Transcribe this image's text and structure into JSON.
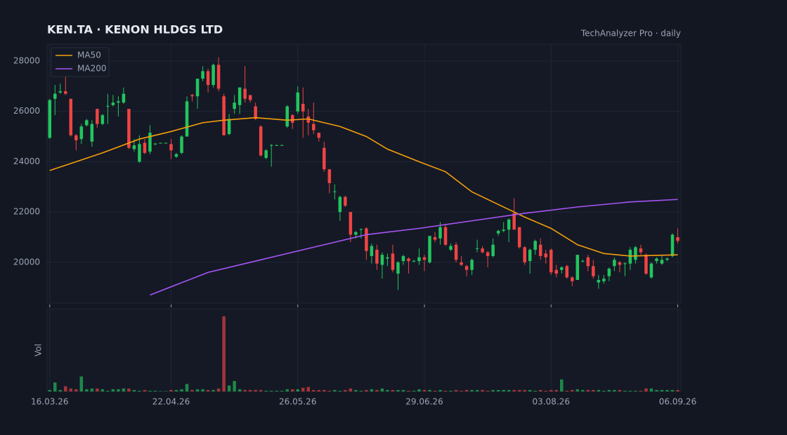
{
  "chart_data": {
    "type": "candlestick",
    "title": "KEN.TA  ·  KENON HLDGS LTD",
    "subtitle": "TechAnalyzer Pro · daily",
    "volume_label": "Vol",
    "up_color": "#22c55e",
    "down_color": "#ef4444",
    "xlim": [
      -0.5,
      119.6
    ],
    "xticks": [
      {
        "value": 0,
        "label": "16.03.26"
      },
      {
        "value": 23,
        "label": "22.04.26"
      },
      {
        "value": 47,
        "label": "26.05.26"
      },
      {
        "value": 71,
        "label": "29.06.26"
      },
      {
        "value": 95,
        "label": "03.08.26"
      },
      {
        "value": 119,
        "label": "06.09.26"
      }
    ],
    "ylim": [
      18380,
      28670
    ],
    "yticks": [
      20000,
      22000,
      24000,
      26000,
      28000
    ],
    "grid": true,
    "legend": "top-left",
    "vlim": [
      0,
      110
    ],
    "ohlc": [
      [
        24950,
        26500,
        24900,
        26450
      ],
      [
        26500,
        27050,
        25850,
        26700
      ],
      [
        26750,
        27100,
        26700,
        26800
      ],
      [
        26800,
        27400,
        26650,
        26700
      ],
      [
        26500,
        26500,
        25000,
        25050
      ],
      [
        25050,
        25100,
        24450,
        24850
      ],
      [
        24900,
        25500,
        24700,
        25400
      ],
      [
        25450,
        25700,
        25400,
        25650
      ],
      [
        24800,
        25650,
        24600,
        25500
      ],
      [
        26100,
        26100,
        25350,
        25500
      ],
      [
        25500,
        25900,
        25450,
        25850
      ],
      [
        26200,
        26700,
        25500,
        26220
      ],
      [
        26250,
        26650,
        26200,
        26350
      ],
      [
        26350,
        26600,
        25800,
        26400
      ],
      [
        26350,
        26950,
        26300,
        26700
      ],
      [
        26100,
        26100,
        24500,
        24550
      ],
      [
        24500,
        24900,
        24400,
        24650
      ],
      [
        24000,
        25050,
        23950,
        24700
      ],
      [
        24750,
        24900,
        24300,
        24350
      ],
      [
        24400,
        25450,
        24300,
        25150
      ],
      [
        24700,
        24750,
        24650,
        24720
      ],
      [
        24750,
        24760,
        24740,
        24750
      ],
      [
        24750,
        24760,
        24740,
        24750
      ],
      [
        24700,
        24900,
        24100,
        24450
      ],
      [
        24200,
        24350,
        24150,
        24300
      ],
      [
        24350,
        25050,
        24300,
        25000
      ],
      [
        25000,
        26600,
        25000,
        26400
      ],
      [
        26650,
        26700,
        26400,
        26600
      ],
      [
        26600,
        27300,
        26100,
        27300
      ],
      [
        27300,
        27800,
        27200,
        27600
      ],
      [
        27600,
        27700,
        26750,
        27050
      ],
      [
        27050,
        27900,
        26950,
        27850
      ],
      [
        27850,
        28150,
        26800,
        26900
      ],
      [
        26600,
        26700,
        25050,
        25050
      ],
      [
        25100,
        25900,
        25050,
        25700
      ],
      [
        26100,
        26650,
        25900,
        26350
      ],
      [
        26250,
        26950,
        25900,
        26950
      ],
      [
        26900,
        27800,
        26350,
        26500
      ],
      [
        26650,
        26650,
        26350,
        26450
      ],
      [
        26200,
        26350,
        25650,
        25700
      ],
      [
        25400,
        25450,
        24200,
        24250
      ],
      [
        24150,
        24500,
        24100,
        24450
      ],
      [
        24650,
        24700,
        23800,
        24660
      ],
      [
        24650,
        24680,
        24640,
        24660
      ],
      [
        24650,
        24680,
        24640,
        24660
      ],
      [
        25400,
        26250,
        25350,
        26200
      ],
      [
        25850,
        25900,
        25300,
        25550
      ],
      [
        26000,
        27000,
        25900,
        26750
      ],
      [
        26300,
        26950,
        24950,
        26000
      ],
      [
        25800,
        26100,
        25050,
        25550
      ],
      [
        25500,
        26350,
        25100,
        25250
      ],
      [
        25150,
        25150,
        24800,
        24950
      ],
      [
        24550,
        24800,
        23600,
        23700
      ],
      [
        23700,
        23700,
        22750,
        23150
      ],
      [
        22800,
        23100,
        22500,
        22820
      ],
      [
        22000,
        22650,
        21650,
        22600
      ],
      [
        22600,
        22650,
        22200,
        22250
      ],
      [
        22000,
        22000,
        20800,
        21100
      ],
      [
        21100,
        21250,
        20950,
        21200
      ],
      [
        21300,
        21350,
        20950,
        21320
      ],
      [
        21350,
        21400,
        20100,
        20450
      ],
      [
        20250,
        20750,
        19950,
        20650
      ],
      [
        20500,
        20700,
        19700,
        19950
      ],
      [
        19900,
        20400,
        19350,
        20300
      ],
      [
        20150,
        20350,
        19850,
        20200
      ],
      [
        20350,
        20700,
        19600,
        19700
      ],
      [
        19550,
        20050,
        18900,
        20000
      ],
      [
        20050,
        20300,
        19900,
        20250
      ],
      [
        20150,
        20200,
        19550,
        20050
      ],
      [
        20050,
        20100,
        20000,
        20060
      ],
      [
        20050,
        20550,
        19900,
        20200
      ],
      [
        20200,
        20300,
        19650,
        20100
      ],
      [
        20000,
        21050,
        19950,
        21050
      ],
      [
        21000,
        21200,
        20800,
        20900
      ],
      [
        20950,
        21600,
        20700,
        21400
      ],
      [
        21400,
        21500,
        20650,
        20700
      ],
      [
        20500,
        20750,
        20450,
        20650
      ],
      [
        20700,
        20800,
        20000,
        20100
      ],
      [
        20000,
        20250,
        19850,
        19900
      ],
      [
        19850,
        19900,
        19450,
        19700
      ],
      [
        19700,
        20150,
        19500,
        20100
      ],
      [
        20550,
        20900,
        20400,
        20560
      ],
      [
        20550,
        20650,
        20350,
        20400
      ],
      [
        20400,
        20450,
        19800,
        20250
      ],
      [
        20250,
        20950,
        20200,
        20700
      ],
      [
        21150,
        21300,
        21050,
        21250
      ],
      [
        21250,
        21600,
        21200,
        21300
      ],
      [
        21300,
        21750,
        20800,
        21700
      ],
      [
        21950,
        22550,
        21300,
        21300
      ],
      [
        21400,
        21400,
        20550,
        20600
      ],
      [
        20600,
        20650,
        19900,
        20000
      ],
      [
        20050,
        20550,
        19550,
        20500
      ],
      [
        20500,
        20900,
        20300,
        20850
      ],
      [
        20700,
        20950,
        20100,
        20250
      ],
      [
        20350,
        20500,
        19950,
        20200
      ],
      [
        20500,
        20550,
        19500,
        19600
      ],
      [
        19700,
        19900,
        19400,
        19550
      ],
      [
        19700,
        19850,
        19550,
        19800
      ],
      [
        19850,
        19900,
        19350,
        19400
      ],
      [
        19400,
        19450,
        19050,
        19250
      ],
      [
        19300,
        20300,
        19300,
        20300
      ],
      [
        20050,
        20100,
        20000,
        20060
      ],
      [
        20200,
        20300,
        19650,
        19850
      ],
      [
        19850,
        20100,
        19350,
        19450
      ],
      [
        19200,
        19500,
        18950,
        19300
      ],
      [
        19250,
        19500,
        19150,
        19350
      ],
      [
        19450,
        19800,
        19250,
        19750
      ],
      [
        19850,
        20200,
        19650,
        20100
      ],
      [
        20000,
        20050,
        19600,
        19900
      ],
      [
        19950,
        20000,
        19450,
        19960
      ],
      [
        19950,
        20600,
        19700,
        20500
      ],
      [
        20100,
        20650,
        19950,
        20600
      ],
      [
        20550,
        20700,
        20300,
        20400
      ],
      [
        20300,
        20350,
        19500,
        19550
      ],
      [
        19400,
        20000,
        19350,
        19950
      ],
      [
        20050,
        20200,
        19950,
        20150
      ],
      [
        19950,
        20300,
        19900,
        20100
      ],
      [
        20100,
        20200,
        20050,
        20150
      ],
      [
        20250,
        21150,
        20200,
        21100
      ],
      [
        21000,
        21350,
        20750,
        20850
      ]
    ],
    "volume": [
      2,
      12,
      2,
      7,
      4,
      3,
      20,
      3,
      4,
      4,
      3,
      1,
      3,
      3,
      4,
      4,
      2,
      1,
      2,
      1,
      1,
      0.5,
      0.5,
      2,
      2,
      3,
      10,
      2,
      3,
      3,
      2,
      2,
      4,
      100,
      8,
      14,
      3,
      2,
      2,
      2,
      2,
      1,
      1,
      1,
      1,
      3,
      3,
      3,
      5,
      6,
      2,
      2,
      2,
      1,
      2,
      1,
      2,
      4,
      2,
      1,
      2,
      3,
      2,
      4,
      2,
      2,
      2,
      2,
      1,
      1,
      3,
      2,
      2,
      1,
      2,
      1,
      1,
      2,
      1,
      2,
      2,
      2,
      2,
      1,
      2,
      2,
      2,
      2,
      2,
      2,
      2,
      2,
      1,
      2,
      1,
      2,
      2,
      16,
      1,
      2,
      3,
      2,
      2,
      2,
      2,
      1,
      2,
      2,
      2,
      1,
      1,
      1,
      1,
      4,
      4,
      2,
      2,
      2,
      2,
      2
    ],
    "series": [
      {
        "name": "MA50",
        "color": "#f59e0b",
        "x": [
          0,
          5,
          10,
          17,
          23,
          29,
          33,
          39,
          45,
          49,
          55,
          60,
          64,
          70,
          75,
          80,
          85,
          90,
          95,
          100,
          105,
          110,
          119
        ],
        "values": [
          23650,
          24000,
          24350,
          24900,
          25200,
          25550,
          25650,
          25750,
          25650,
          25700,
          25400,
          25000,
          24500,
          24000,
          23600,
          22800,
          22300,
          21800,
          21350,
          20700,
          20350,
          20250,
          20300
        ]
      },
      {
        "name": "MA200",
        "color": "#a855f7",
        "x": [
          19,
          30,
          40,
          50,
          60,
          70,
          80,
          90,
          100,
          110,
          119
        ],
        "values": [
          18700,
          19600,
          20100,
          20600,
          21100,
          21350,
          21650,
          21950,
          22200,
          22400,
          22500
        ]
      }
    ]
  }
}
